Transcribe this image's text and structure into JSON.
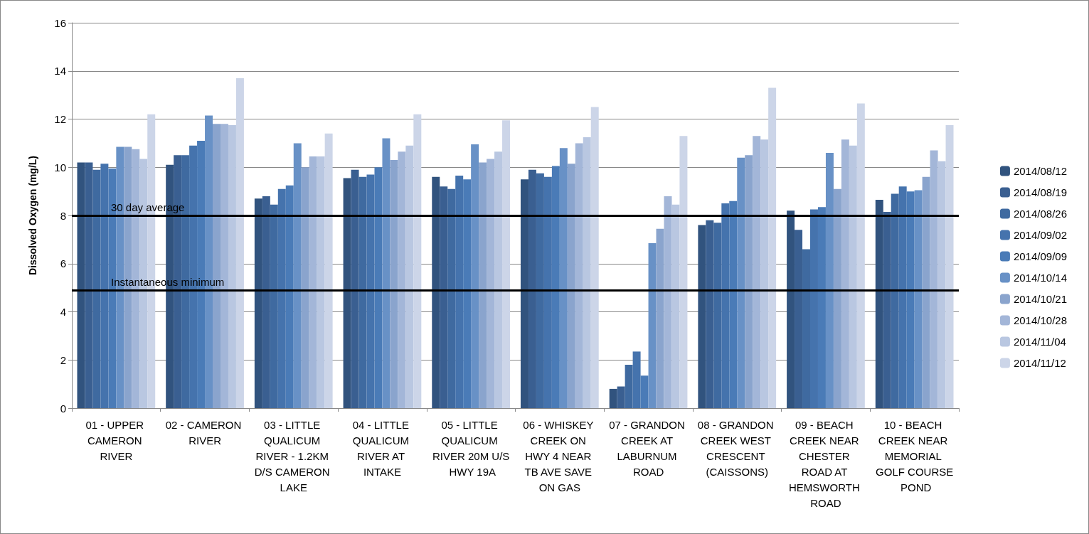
{
  "chart_data": {
    "type": "bar",
    "ylabel": "Dissolved Oxygen (mg/L)",
    "categories": [
      "01 - UPPER CAMERON RIVER",
      "02 - CAMERON RIVER",
      "03 - LITTLE QUALICUM RIVER - 1.2KM D/S CAMERON LAKE",
      "04 - LITTLE QUALICUM RIVER AT INTAKE",
      "05 - LITTLE QUALICUM RIVER 20M U/S HWY 19A",
      "06 - WHISKEY CREEK ON HWY 4 NEAR TB AVE SAVE ON GAS",
      "07 - GRANDON CREEK AT LABURNUM ROAD",
      "08 - GRANDON CREEK WEST CRESCENT (CAISSONS)",
      "09 - BEACH CREEK NEAR CHESTER ROAD AT HEMSWORTH ROAD",
      "10 - BEACH CREEK NEAR MEMORIAL GOLF COURSE POND"
    ],
    "series": [
      {
        "name": "2014/08/12",
        "color": "#31537e",
        "values": [
          10.2,
          10.1,
          8.7,
          9.55,
          9.6,
          9.5,
          0.8,
          7.6,
          8.2,
          8.65
        ]
      },
      {
        "name": "2014/08/19",
        "color": "#3a5f91",
        "values": [
          10.2,
          10.5,
          8.8,
          9.9,
          9.2,
          9.9,
          0.9,
          7.8,
          7.4,
          8.15
        ]
      },
      {
        "name": "2014/08/26",
        "color": "#3f6aa0",
        "values": [
          9.9,
          10.5,
          8.45,
          9.6,
          9.1,
          9.75,
          1.8,
          7.7,
          6.6,
          8.9
        ]
      },
      {
        "name": "2014/09/02",
        "color": "#4573ad",
        "values": [
          10.15,
          10.9,
          9.1,
          9.7,
          9.65,
          9.6,
          2.35,
          8.5,
          8.25,
          9.2
        ]
      },
      {
        "name": "2014/09/09",
        "color": "#4a7bb7",
        "values": [
          9.95,
          11.1,
          9.25,
          10.0,
          9.5,
          10.05,
          1.35,
          8.6,
          8.35,
          9.0
        ]
      },
      {
        "name": "2014/10/14",
        "color": "#6891c6",
        "values": [
          10.85,
          12.15,
          11.0,
          11.2,
          10.95,
          10.8,
          6.85,
          10.4,
          10.6,
          9.05
        ]
      },
      {
        "name": "2014/10/21",
        "color": "#8aa4cd",
        "values": [
          10.85,
          11.8,
          10.0,
          10.3,
          10.2,
          10.15,
          7.45,
          10.5,
          9.1,
          9.6
        ]
      },
      {
        "name": "2014/10/28",
        "color": "#a3b6d8",
        "values": [
          10.75,
          11.8,
          10.45,
          10.65,
          10.35,
          11.0,
          8.8,
          11.3,
          11.15,
          10.7
        ]
      },
      {
        "name": "2014/11/04",
        "color": "#b9c7e1",
        "values": [
          10.35,
          11.75,
          10.45,
          10.9,
          10.65,
          11.25,
          8.45,
          11.15,
          10.9,
          10.25
        ]
      },
      {
        "name": "2014/11/12",
        "color": "#ccd5e8",
        "values": [
          12.2,
          13.7,
          11.4,
          12.2,
          11.95,
          12.5,
          11.3,
          13.3,
          12.65,
          11.75
        ]
      }
    ],
    "ref_lines": [
      {
        "axis": "y",
        "value": 8,
        "label": "30 day average",
        "color": "#000000"
      },
      {
        "axis": "y",
        "value": 4.9,
        "label": "Instantaneous minimum",
        "color": "#000000"
      }
    ],
    "ylim": [
      0,
      16
    ],
    "yticks": [
      0,
      2,
      4,
      6,
      8,
      10,
      12,
      14,
      16
    ],
    "grid": "y",
    "legend": "right"
  }
}
